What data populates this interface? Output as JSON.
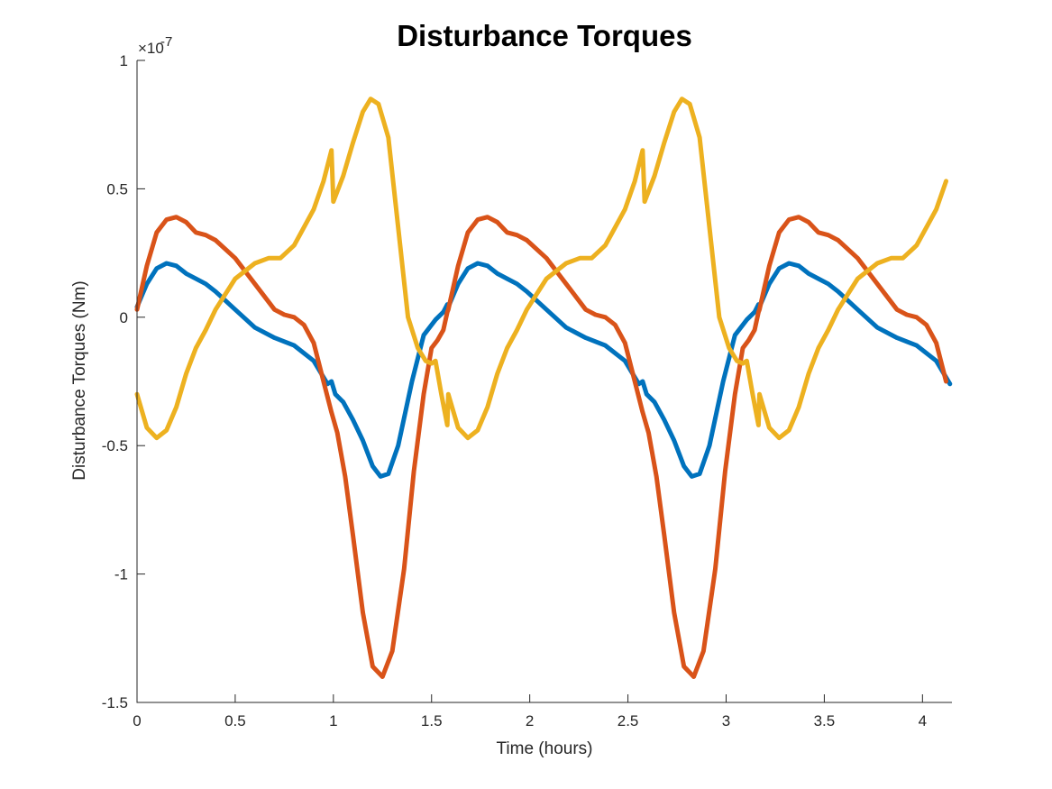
{
  "chart_data": {
    "type": "line",
    "title": "Disturbance Torques",
    "xlabel": "Time (hours)",
    "ylabel": "Disturbance Torques (Nm)",
    "y_exponent_label": "×10",
    "y_exponent_power": "-7",
    "xlim": [
      0,
      4.15
    ],
    "ylim": [
      -1.5,
      1
    ],
    "x_ticks": [
      0,
      0.5,
      1,
      1.5,
      2,
      2.5,
      3,
      3.5,
      4
    ],
    "x_tick_labels": [
      "0",
      "0.5",
      "1",
      "1.5",
      "2",
      "2.5",
      "3",
      "3.5",
      "4"
    ],
    "y_ticks": [
      -1.5,
      -1,
      -0.5,
      0,
      0.5,
      1
    ],
    "y_tick_labels": [
      "-1.5",
      "-1",
      "-0.5",
      "0",
      "0.5",
      "1"
    ],
    "grid": false,
    "legend": "none",
    "period_hours": 1.585,
    "series": [
      {
        "color": "#0072BD",
        "points": [
          [
            0.0,
            0.04
          ],
          [
            0.05,
            0.13
          ],
          [
            0.1,
            0.19
          ],
          [
            0.15,
            0.21
          ],
          [
            0.2,
            0.2
          ],
          [
            0.25,
            0.17
          ],
          [
            0.3,
            0.15
          ],
          [
            0.35,
            0.13
          ],
          [
            0.4,
            0.1
          ],
          [
            0.5,
            0.03
          ],
          [
            0.6,
            -0.04
          ],
          [
            0.7,
            -0.08
          ],
          [
            0.8,
            -0.11
          ],
          [
            0.9,
            -0.17
          ],
          [
            0.97,
            -0.26
          ],
          [
            0.99,
            -0.25
          ],
          [
            1.01,
            -0.3
          ],
          [
            1.05,
            -0.33
          ],
          [
            1.1,
            -0.4
          ],
          [
            1.15,
            -0.48
          ],
          [
            1.2,
            -0.58
          ],
          [
            1.24,
            -0.62
          ],
          [
            1.28,
            -0.61
          ],
          [
            1.33,
            -0.5
          ],
          [
            1.4,
            -0.25
          ],
          [
            1.46,
            -0.07
          ],
          [
            1.52,
            -0.01
          ],
          [
            1.56,
            0.02
          ],
          [
            1.58,
            0.05
          ]
        ]
      },
      {
        "color": "#D95319",
        "points": [
          [
            0.0,
            0.03
          ],
          [
            0.05,
            0.2
          ],
          [
            0.1,
            0.33
          ],
          [
            0.15,
            0.38
          ],
          [
            0.2,
            0.39
          ],
          [
            0.25,
            0.37
          ],
          [
            0.3,
            0.33
          ],
          [
            0.35,
            0.32
          ],
          [
            0.4,
            0.3
          ],
          [
            0.5,
            0.23
          ],
          [
            0.6,
            0.13
          ],
          [
            0.7,
            0.03
          ],
          [
            0.75,
            0.01
          ],
          [
            0.8,
            0.0
          ],
          [
            0.85,
            -0.03
          ],
          [
            0.9,
            -0.1
          ],
          [
            0.95,
            -0.25
          ],
          [
            0.99,
            -0.37
          ],
          [
            1.02,
            -0.45
          ],
          [
            1.06,
            -0.62
          ],
          [
            1.1,
            -0.85
          ],
          [
            1.15,
            -1.15
          ],
          [
            1.2,
            -1.36
          ],
          [
            1.25,
            -1.4
          ],
          [
            1.3,
            -1.3
          ],
          [
            1.36,
            -0.98
          ],
          [
            1.41,
            -0.6
          ],
          [
            1.46,
            -0.3
          ],
          [
            1.5,
            -0.12
          ],
          [
            1.53,
            -0.09
          ],
          [
            1.56,
            -0.05
          ],
          [
            1.58,
            0.02
          ]
        ]
      },
      {
        "color": "#EDB120",
        "points": [
          [
            0.0,
            -0.3
          ],
          [
            0.05,
            -0.43
          ],
          [
            0.1,
            -0.47
          ],
          [
            0.15,
            -0.44
          ],
          [
            0.2,
            -0.35
          ],
          [
            0.25,
            -0.22
          ],
          [
            0.3,
            -0.12
          ],
          [
            0.35,
            -0.05
          ],
          [
            0.4,
            0.03
          ],
          [
            0.5,
            0.15
          ],
          [
            0.6,
            0.21
          ],
          [
            0.67,
            0.23
          ],
          [
            0.73,
            0.23
          ],
          [
            0.8,
            0.28
          ],
          [
            0.9,
            0.42
          ],
          [
            0.95,
            0.53
          ],
          [
            0.99,
            0.65
          ],
          [
            1.0,
            0.45
          ],
          [
            1.05,
            0.55
          ],
          [
            1.1,
            0.68
          ],
          [
            1.15,
            0.8
          ],
          [
            1.19,
            0.85
          ],
          [
            1.23,
            0.83
          ],
          [
            1.28,
            0.7
          ],
          [
            1.33,
            0.35
          ],
          [
            1.38,
            0.0
          ],
          [
            1.43,
            -0.12
          ],
          [
            1.47,
            -0.17
          ],
          [
            1.5,
            -0.18
          ],
          [
            1.52,
            -0.17
          ],
          [
            1.55,
            -0.3
          ],
          [
            1.58,
            -0.42
          ]
        ]
      }
    ]
  }
}
